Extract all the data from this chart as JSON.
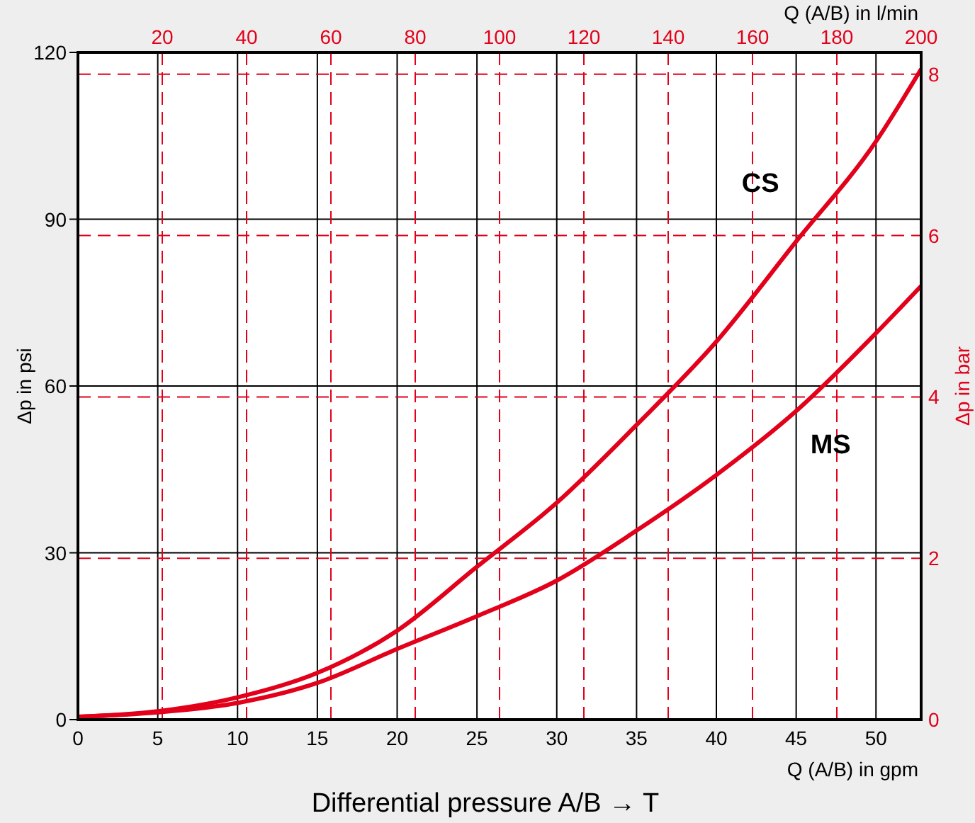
{
  "chart_data": {
    "type": "line",
    "annotations": [
      "Differential pressure A/B → T"
    ],
    "xlabel": "Q (A/B) in gpm",
    "x2label": "Q (A/B) in l/min",
    "ylabel": "Δp in psi",
    "y2label": "Δp in bar",
    "xlim": [
      0,
      52.83
    ],
    "xticks": [
      0,
      5,
      10,
      15,
      20,
      25,
      30,
      35,
      40,
      45,
      50
    ],
    "x2lim": [
      0,
      200
    ],
    "x2ticks": [
      20,
      40,
      60,
      80,
      100,
      120,
      140,
      160,
      180,
      200
    ],
    "ylim": [
      0,
      120
    ],
    "yticks": [
      0,
      30,
      60,
      90,
      120
    ],
    "y2lim": [
      0,
      8.27
    ],
    "y2ticks": [
      0,
      2,
      4,
      6,
      8
    ],
    "grid": true,
    "marker": "none",
    "line_style": "solid",
    "series": [
      {
        "name": "CS",
        "color": "#e2001a",
        "x": [
          0,
          5,
          10,
          15,
          20,
          25,
          30,
          35,
          40,
          45,
          50,
          52.83
        ],
        "values": [
          0.5,
          1.5,
          4,
          8.4,
          16,
          27.5,
          39,
          53,
          68,
          86,
          104,
          117
        ]
      },
      {
        "name": "MS",
        "color": "#e2001a",
        "x": [
          0,
          5,
          10,
          15,
          20,
          25,
          30,
          35,
          40,
          45,
          50,
          52.83
        ],
        "values": [
          0.5,
          1.3,
          3,
          6.6,
          12.7,
          18.6,
          25,
          34,
          44,
          55.5,
          69.5,
          78
        ]
      }
    ]
  }
}
